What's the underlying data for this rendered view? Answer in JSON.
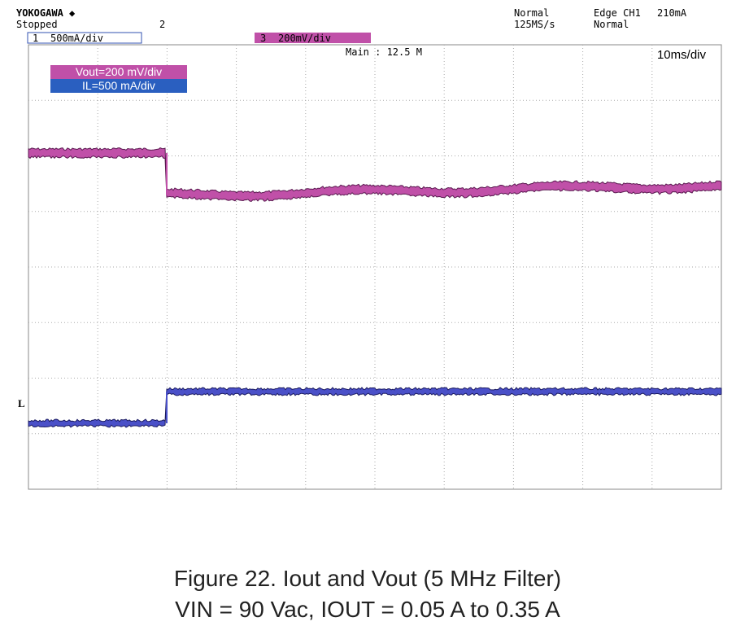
{
  "header": {
    "brand": "YOKOGAWA ◆",
    "status": "Stopped",
    "marker": "2",
    "mode": "Normal",
    "sample_rate": "125MS/s",
    "trigger": "Edge CH1",
    "trigger_level": "210mA",
    "trigger_mode": "Normal"
  },
  "channels": [
    {
      "number": "1",
      "scale": "500mA/div"
    },
    {
      "number": "3",
      "scale": "200mV/div"
    }
  ],
  "timebase": {
    "record": "Main : 12.5 M",
    "scale": "10ms/div"
  },
  "legend": [
    "Vout=200 mV/div",
    "IL=500 mA/div"
  ],
  "markers": {
    "il": "L"
  },
  "caption": [
    "Figure 22. Iout and Vout (5 MHz Filter)",
    "VIN = 90 Vac, IOUT = 0.05 A to 0.35 A"
  ]
}
